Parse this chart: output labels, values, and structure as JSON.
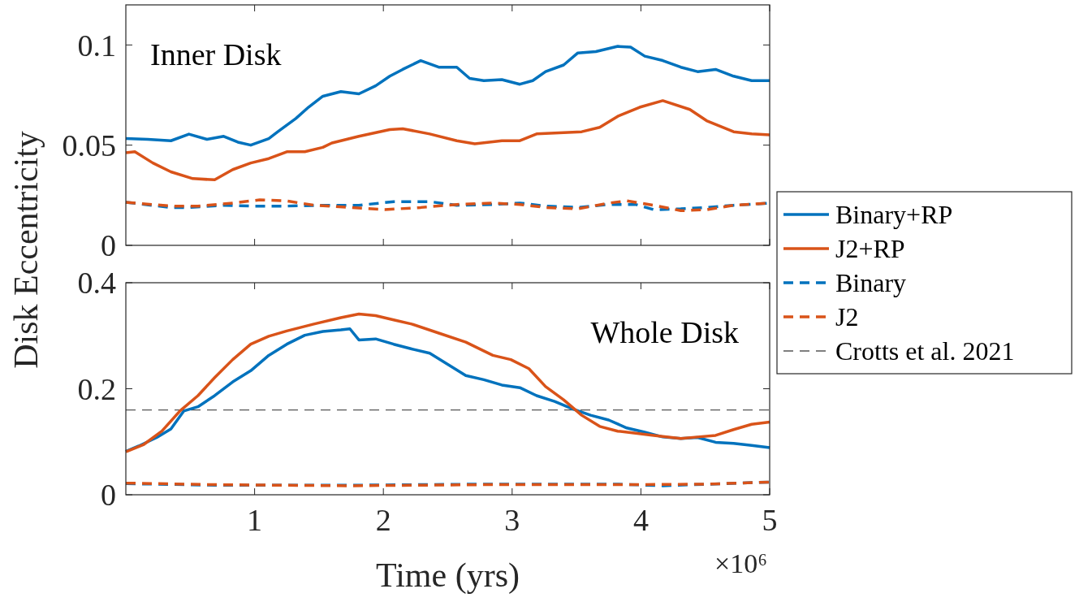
{
  "chart_data": [
    {
      "type": "line",
      "ylabel": "Disk Eccentricity",
      "annotations": [
        "Inner Disk"
      ],
      "xlim": [
        0,
        5
      ],
      "xticks": [
        1,
        2,
        3,
        4,
        5
      ],
      "ylim": [
        0,
        0.12
      ],
      "yticks": [
        0,
        0.05,
        0.1
      ],
      "tick_labels": "y",
      "grid": false,
      "legend": "right",
      "series": [
        {
          "name": "Binary+RP",
          "color": "#0072bd",
          "line_style": "solid",
          "x": [
            0,
            0.17,
            0.35,
            0.49,
            0.63,
            0.76,
            0.87,
            0.97,
            1.11,
            1.18,
            1.32,
            1.42,
            1.53,
            1.67,
            1.81,
            1.94,
            2.05,
            2.15,
            2.29,
            2.43,
            2.57,
            2.67,
            2.78,
            2.92,
            3.06,
            3.16,
            3.26,
            3.4,
            3.51,
            3.65,
            3.82,
            3.92,
            4.03,
            4.17,
            4.31,
            4.44,
            4.58,
            4.72,
            4.86,
            5
          ],
          "values": [
            0.0533,
            0.0529,
            0.0522,
            0.0555,
            0.0529,
            0.0544,
            0.0515,
            0.05,
            0.0533,
            0.0567,
            0.0633,
            0.069,
            0.0744,
            0.0767,
            0.0756,
            0.0796,
            0.0844,
            0.0878,
            0.0922,
            0.0889,
            0.0889,
            0.0833,
            0.0822,
            0.0827,
            0.0804,
            0.0822,
            0.0867,
            0.09,
            0.096,
            0.0967,
            0.0993,
            0.0989,
            0.0944,
            0.0922,
            0.0889,
            0.0867,
            0.0878,
            0.0844,
            0.0822,
            0.0822
          ]
        },
        {
          "name": "J2+RP",
          "color": "#d95319",
          "line_style": "solid",
          "x": [
            0,
            0.07,
            0.21,
            0.35,
            0.52,
            0.69,
            0.83,
            0.97,
            1.11,
            1.25,
            1.39,
            1.53,
            1.6,
            1.81,
            2.05,
            2.15,
            2.36,
            2.57,
            2.71,
            2.92,
            3.06,
            3.19,
            3.33,
            3.54,
            3.68,
            3.82,
            3.99,
            4.17,
            4.38,
            4.51,
            4.72,
            4.86,
            5
          ],
          "values": [
            0.0462,
            0.0467,
            0.0411,
            0.0367,
            0.0333,
            0.0327,
            0.0378,
            0.0411,
            0.0433,
            0.0467,
            0.0467,
            0.0489,
            0.0511,
            0.0544,
            0.0578,
            0.0582,
            0.0556,
            0.0522,
            0.0507,
            0.0522,
            0.0522,
            0.0556,
            0.056,
            0.0567,
            0.0589,
            0.0644,
            0.0689,
            0.0722,
            0.0678,
            0.0622,
            0.0567,
            0.0556,
            0.0551
          ]
        },
        {
          "name": "Binary",
          "color": "#0072bd",
          "line_style": "dashed",
          "x": [
            0,
            0.35,
            0.49,
            0.76,
            0.97,
            1.25,
            1.53,
            1.81,
            2.08,
            2.36,
            2.57,
            2.85,
            3.06,
            3.26,
            3.51,
            3.75,
            3.96,
            4.1,
            4.31,
            4.51,
            4.72,
            5
          ],
          "values": [
            0.0215,
            0.0189,
            0.0189,
            0.02,
            0.0196,
            0.0196,
            0.02,
            0.02,
            0.0218,
            0.0218,
            0.02,
            0.0204,
            0.0211,
            0.0196,
            0.0189,
            0.0204,
            0.0204,
            0.0178,
            0.0182,
            0.0189,
            0.02,
            0.0211
          ]
        },
        {
          "name": "J2",
          "color": "#d95319",
          "line_style": "dashed",
          "x": [
            0,
            0.35,
            0.56,
            0.83,
            1.04,
            1.25,
            1.46,
            1.74,
            2.01,
            2.29,
            2.57,
            2.85,
            3.06,
            3.26,
            3.51,
            3.75,
            3.89,
            4.1,
            4.31,
            4.51,
            4.72,
            5
          ],
          "values": [
            0.0215,
            0.0196,
            0.0196,
            0.0211,
            0.0227,
            0.0222,
            0.02,
            0.0189,
            0.0178,
            0.0189,
            0.0204,
            0.0211,
            0.0204,
            0.0189,
            0.0182,
            0.0211,
            0.0222,
            0.02,
            0.0173,
            0.0178,
            0.02,
            0.0211
          ]
        }
      ]
    },
    {
      "type": "line",
      "xlabel": "Time (yrs)",
      "annotations": [
        "Whole Disk",
        "×10⁶"
      ],
      "xlim": [
        0,
        5
      ],
      "xticks": [
        1,
        2,
        3,
        4,
        5
      ],
      "ylim": [
        0,
        0.4
      ],
      "yticks": [
        0,
        0.2,
        0.4
      ],
      "grid": false,
      "ref_lines": [
        {
          "axis": "y",
          "value": 0.16,
          "label": "Crotts et al. 2021",
          "color": "#555555",
          "line_style": "dashed"
        }
      ],
      "series": [
        {
          "color": "#0072bd",
          "line_style": "solid",
          "x": [
            0,
            0.1,
            0.24,
            0.35,
            0.45,
            0.56,
            0.69,
            0.83,
            0.97,
            1.11,
            1.25,
            1.39,
            1.53,
            1.67,
            1.74,
            1.81,
            1.94,
            2.08,
            2.22,
            2.36,
            2.5,
            2.64,
            2.78,
            2.92,
            3.06,
            3.19,
            3.33,
            3.47,
            3.61,
            3.75,
            3.89,
            4.03,
            4.17,
            4.31,
            4.44,
            4.58,
            4.72,
            4.86,
            5
          ],
          "values": [
            0.082,
            0.092,
            0.108,
            0.124,
            0.158,
            0.166,
            0.187,
            0.213,
            0.234,
            0.263,
            0.284,
            0.301,
            0.308,
            0.311,
            0.313,
            0.292,
            0.294,
            0.284,
            0.275,
            0.267,
            0.246,
            0.225,
            0.217,
            0.207,
            0.202,
            0.187,
            0.176,
            0.162,
            0.15,
            0.141,
            0.126,
            0.118,
            0.109,
            0.106,
            0.108,
            0.099,
            0.097,
            0.093,
            0.089
          ]
        },
        {
          "color": "#d95319",
          "line_style": "solid",
          "x": [
            0,
            0.14,
            0.28,
            0.42,
            0.56,
            0.69,
            0.83,
            0.97,
            1.11,
            1.25,
            1.46,
            1.67,
            1.81,
            1.94,
            2.08,
            2.22,
            2.43,
            2.64,
            2.85,
            2.99,
            3.13,
            3.26,
            3.4,
            3.54,
            3.68,
            3.82,
            3.96,
            4.1,
            4.31,
            4.44,
            4.58,
            4.72,
            4.86,
            5
          ],
          "values": [
            0.081,
            0.095,
            0.12,
            0.158,
            0.187,
            0.221,
            0.255,
            0.284,
            0.299,
            0.309,
            0.322,
            0.334,
            0.341,
            0.338,
            0.33,
            0.322,
            0.305,
            0.288,
            0.263,
            0.255,
            0.238,
            0.204,
            0.179,
            0.15,
            0.129,
            0.12,
            0.116,
            0.112,
            0.106,
            0.109,
            0.112,
            0.123,
            0.133,
            0.137
          ]
        },
        {
          "color": "#0072bd",
          "line_style": "dashed",
          "x": [
            0,
            0.69,
            1.74,
            2.78,
            3.82,
            4.17,
            5
          ],
          "values": [
            0.021,
            0.018,
            0.018,
            0.02,
            0.02,
            0.017,
            0.024
          ]
        },
        {
          "color": "#d95319",
          "line_style": "dashed",
          "x": [
            0,
            0.69,
            1.74,
            2.78,
            3.82,
            4.51,
            5
          ],
          "values": [
            0.022,
            0.019,
            0.017,
            0.019,
            0.019,
            0.02,
            0.024
          ]
        }
      ]
    }
  ]
}
